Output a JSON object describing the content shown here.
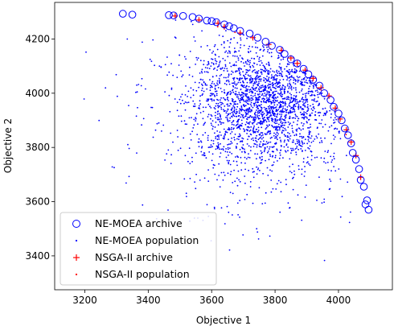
{
  "chart_data": {
    "type": "scatter",
    "xlabel": "Objective 1",
    "ylabel": "Objective 2",
    "xlim": [
      3105,
      4170
    ],
    "ylim": [
      3275,
      4335
    ],
    "xticks": [
      3200,
      3400,
      3600,
      3800,
      4000
    ],
    "yticks": [
      3400,
      3600,
      3800,
      4000,
      4200
    ],
    "legend_position": "lower-left",
    "legend": [
      {
        "label": "NE-MOEA archive",
        "marker": "open-circle",
        "color": "#0000ff"
      },
      {
        "label": "NE-MOEA population",
        "marker": "dot",
        "color": "#0000ff"
      },
      {
        "label": "NSGA-II archive",
        "marker": "plus",
        "color": "#ff0000"
      },
      {
        "label": "NSGA-II population",
        "marker": "dot",
        "color": "#ff0000"
      }
    ],
    "series": [
      {
        "name": "NE-MOEA archive",
        "x": [
          3320,
          3350,
          3465,
          3480,
          3510,
          3540,
          3560,
          3585,
          3600,
          3615,
          3640,
          3655,
          3670,
          3690,
          3720,
          3745,
          3770,
          3790,
          3815,
          3830,
          3850,
          3870,
          3890,
          3905,
          3920,
          3940,
          3955,
          3975,
          3985,
          4000,
          4010,
          4020,
          4030,
          4040,
          4045,
          4055,
          4065,
          4070,
          4080,
          4090,
          4085,
          4095
        ],
        "y": [
          4293,
          4290,
          4288,
          4287,
          4285,
          4281,
          4275,
          4268,
          4266,
          4262,
          4254,
          4247,
          4240,
          4230,
          4220,
          4205,
          4190,
          4175,
          4160,
          4145,
          4125,
          4110,
          4090,
          4070,
          4050,
          4028,
          4000,
          3975,
          3950,
          3925,
          3900,
          3870,
          3845,
          3815,
          3780,
          3755,
          3720,
          3680,
          3655,
          3605,
          3590,
          3570
        ]
      },
      {
        "name": "NSGA-II archive",
        "x": [
          3485,
          3560,
          3620,
          3640,
          3690,
          3730,
          3780,
          3820,
          3850,
          3870,
          3895,
          3920,
          3945,
          3970,
          3990,
          4005,
          4025,
          4040,
          4055,
          4070
        ],
        "y": [
          4285,
          4270,
          4258,
          4245,
          4222,
          4205,
          4180,
          4158,
          4130,
          4110,
          4085,
          4055,
          4020,
          3990,
          3945,
          3905,
          3865,
          3820,
          3770,
          3690
        ]
      },
      {
        "name": "NE-MOEA population",
        "count_shown": 2400
      },
      {
        "name": "NSGA-II population",
        "count_shown": 6
      }
    ]
  }
}
